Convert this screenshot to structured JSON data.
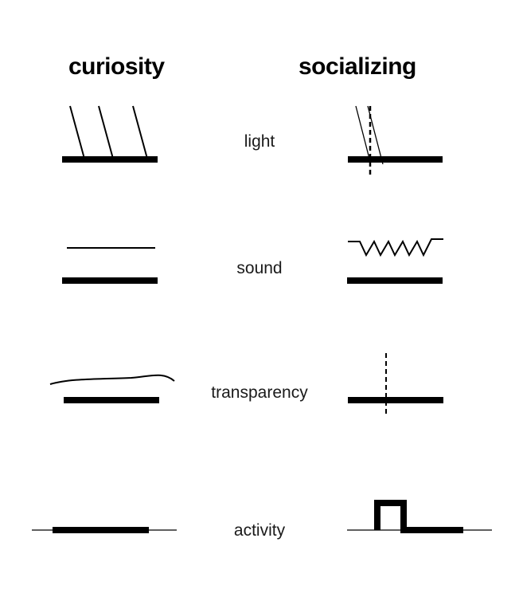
{
  "columns": {
    "left": "curiosity",
    "right": "socializing"
  },
  "rows": [
    {
      "label": "light"
    },
    {
      "label": "sound"
    },
    {
      "label": "transparency"
    },
    {
      "label": "activity"
    }
  ],
  "colors": {
    "ink": "#000000",
    "label": "#1a1a1a",
    "background": "#ffffff"
  }
}
